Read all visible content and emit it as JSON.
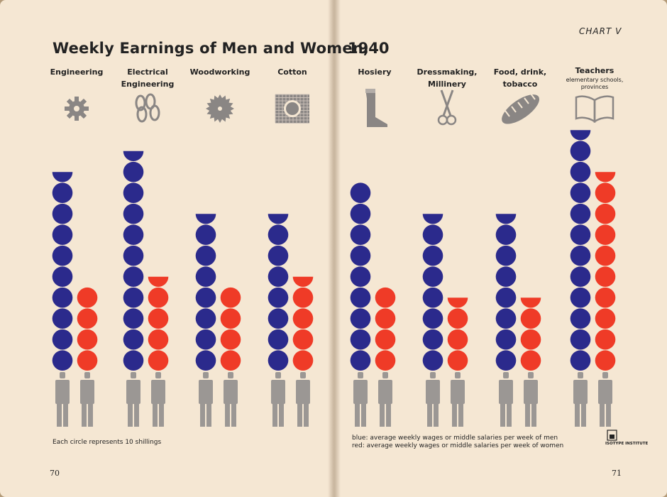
{
  "header": {
    "title_left": "Weekly Earnings of Men and Women,",
    "title_right": "1940",
    "chart_number": "CHART V"
  },
  "footer": {
    "scale_note": "Each circle represents 10 shillings",
    "legend_blue": "blue: average weekly wages or middle salaries per week of men",
    "legend_red": "red: average weekly wages or middle salaries per week of women",
    "page_left": "70",
    "page_right": "71",
    "logo": "ISOTYPE INSTITUTE"
  },
  "colors": {
    "men": "#2b2a8c",
    "women": "#ef3b27",
    "figure": "#9b9794",
    "icon": "#8a8684"
  },
  "chart_data": {
    "type": "bar",
    "unit": "shillings per week",
    "unit_per_circle": 10,
    "categories": [
      {
        "line1": "Engineering",
        "line2": "",
        "sub": "",
        "icon": "gear-icon"
      },
      {
        "line1": "Electrical",
        "line2": "Engineering",
        "sub": "",
        "icon": "chain-icon"
      },
      {
        "line1": "Woodworking",
        "line2": "",
        "sub": "",
        "icon": "saw-blade-icon"
      },
      {
        "line1": "Cotton",
        "line2": "",
        "sub": "",
        "icon": "cotton-fabric-icon"
      },
      {
        "line1": "Hosiery",
        "line2": "",
        "sub": "",
        "icon": "stocking-icon"
      },
      {
        "line1": "Dressmaking,",
        "line2": "Millinery",
        "sub": "",
        "icon": "scissors-icon"
      },
      {
        "line1": "Food, drink,",
        "line2": "tobacco",
        "sub": "",
        "icon": "bread-icon"
      },
      {
        "line1": "Teachers",
        "line2": "",
        "sub": "elementary schools, provinces",
        "icon": "book-icon"
      }
    ],
    "series": [
      {
        "name": "blue",
        "values": [
          95,
          105,
          75,
          75,
          90,
          75,
          75,
          115
        ]
      },
      {
        "name": "red",
        "values": [
          40,
          45,
          40,
          45,
          40,
          35,
          35,
          95
        ]
      }
    ]
  }
}
